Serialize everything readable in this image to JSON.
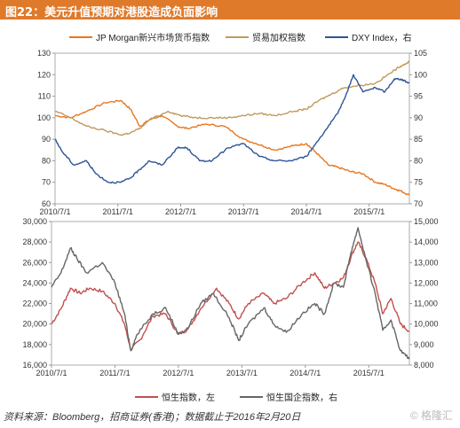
{
  "title": "图22：美元升值预期对港股造成负面影响",
  "footer": "资料来源：Bloomberg，招商证券(香港)；数据截止于2016年2月20日",
  "watermark": "© 格隆汇",
  "chart_data": [
    {
      "type": "line",
      "legend_position": "top",
      "x_ticks": [
        "2010/7/1",
        "2011/7/1",
        "2012/7/1",
        "2013/7/1",
        "2014/7/1",
        "2015/7/1"
      ],
      "y_left": {
        "ticks": [
          60,
          70,
          80,
          90,
          100,
          110,
          120,
          130
        ],
        "range": [
          60,
          130
        ]
      },
      "y_right": {
        "ticks": [
          70,
          75,
          80,
          85,
          90,
          95,
          100,
          105
        ],
        "range": [
          70,
          105
        ]
      },
      "series": [
        {
          "name": "JP Morgan新兴市场货币指数",
          "axis": "left",
          "color": "#e8761e",
          "values": [
            [
              2010.5,
              101
            ],
            [
              2010.75,
              100
            ],
            [
              2011.0,
              103
            ],
            [
              2011.3,
              107
            ],
            [
              2011.55,
              108
            ],
            [
              2011.7,
              104
            ],
            [
              2011.85,
              96
            ],
            [
              2012.0,
              99
            ],
            [
              2012.2,
              101
            ],
            [
              2012.45,
              96
            ],
            [
              2012.6,
              95
            ],
            [
              2012.9,
              97
            ],
            [
              2013.2,
              96
            ],
            [
              2013.5,
              90
            ],
            [
              2013.7,
              88
            ],
            [
              2014.0,
              85
            ],
            [
              2014.3,
              87
            ],
            [
              2014.5,
              88
            ],
            [
              2014.65,
              84
            ],
            [
              2014.85,
              78
            ],
            [
              2015.0,
              77
            ],
            [
              2015.2,
              75
            ],
            [
              2015.4,
              74
            ],
            [
              2015.6,
              70
            ],
            [
              2015.75,
              69
            ],
            [
              2015.9,
              67
            ],
            [
              2016.0,
              66
            ],
            [
              2016.14,
              64
            ]
          ]
        },
        {
          "name": "贸易加权指数",
          "axis": "left",
          "color": "#c19a5b",
          "values": [
            [
              2010.5,
              103
            ],
            [
              2010.75,
              100
            ],
            [
              2011.0,
              96
            ],
            [
              2011.3,
              94
            ],
            [
              2011.55,
              92
            ],
            [
              2011.7,
              93
            ],
            [
              2011.85,
              95
            ],
            [
              2012.0,
              99
            ],
            [
              2012.3,
              103
            ],
            [
              2012.5,
              101
            ],
            [
              2012.75,
              100
            ],
            [
              2013.0,
              100
            ],
            [
              2013.25,
              100
            ],
            [
              2013.5,
              101
            ],
            [
              2013.75,
              102
            ],
            [
              2014.0,
              101
            ],
            [
              2014.3,
              103
            ],
            [
              2014.5,
              104
            ],
            [
              2014.7,
              108
            ],
            [
              2014.9,
              111
            ],
            [
              2015.1,
              114
            ],
            [
              2015.35,
              115
            ],
            [
              2015.6,
              116
            ],
            [
              2015.85,
              121
            ],
            [
              2016.0,
              124
            ],
            [
              2016.14,
              126
            ]
          ]
        },
        {
          "name": "DXY Index，右",
          "axis": "right",
          "color": "#2e5596",
          "values": [
            [
              2010.5,
              85
            ],
            [
              2010.62,
              82
            ],
            [
              2010.8,
              79
            ],
            [
              2011.0,
              80
            ],
            [
              2011.15,
              77
            ],
            [
              2011.35,
              75
            ],
            [
              2011.55,
              75
            ],
            [
              2011.7,
              76
            ],
            [
              2011.85,
              78
            ],
            [
              2012.0,
              80
            ],
            [
              2012.2,
              79
            ],
            [
              2012.45,
              83
            ],
            [
              2012.6,
              83
            ],
            [
              2012.8,
              80
            ],
            [
              2013.0,
              80
            ],
            [
              2013.25,
              83
            ],
            [
              2013.5,
              84
            ],
            [
              2013.75,
              81
            ],
            [
              2014.0,
              80
            ],
            [
              2014.25,
              80
            ],
            [
              2014.5,
              81
            ],
            [
              2014.65,
              84
            ],
            [
              2014.85,
              88
            ],
            [
              2015.0,
              91
            ],
            [
              2015.15,
              96
            ],
            [
              2015.25,
              100
            ],
            [
              2015.4,
              96
            ],
            [
              2015.6,
              97
            ],
            [
              2015.75,
              96
            ],
            [
              2015.9,
              99
            ],
            [
              2016.0,
              99
            ],
            [
              2016.14,
              98
            ]
          ]
        }
      ]
    },
    {
      "type": "line",
      "legend_position": "bottom",
      "x_ticks": [
        "2010/7/1",
        "2011/7/1",
        "2012/7/1",
        "2013/7/1",
        "2014/7/1",
        "2015/7/1"
      ],
      "y_left": {
        "ticks": [
          16000,
          18000,
          20000,
          22000,
          24000,
          26000,
          28000,
          30000
        ],
        "range": [
          16000,
          30000
        ],
        "format": "comma"
      },
      "y_right": {
        "ticks": [
          8000,
          9000,
          10000,
          11000,
          12000,
          13000,
          14000,
          15000
        ],
        "range": [
          8000,
          15000
        ],
        "format": "comma"
      },
      "series": [
        {
          "name": "恒生指数，左",
          "axis": "left",
          "color": "#c0504d",
          "values": [
            [
              2010.5,
              20000
            ],
            [
              2010.65,
              21500
            ],
            [
              2010.8,
              23500
            ],
            [
              2010.95,
              23000
            ],
            [
              2011.1,
              23500
            ],
            [
              2011.3,
              23200
            ],
            [
              2011.5,
              22000
            ],
            [
              2011.65,
              20000
            ],
            [
              2011.75,
              17500
            ],
            [
              2011.9,
              18500
            ],
            [
              2012.1,
              20800
            ],
            [
              2012.3,
              21000
            ],
            [
              2012.5,
              19000
            ],
            [
              2012.65,
              19500
            ],
            [
              2012.85,
              21500
            ],
            [
              2013.1,
              23500
            ],
            [
              2013.3,
              22000
            ],
            [
              2013.45,
              20500
            ],
            [
              2013.6,
              22000
            ],
            [
              2013.85,
              23000
            ],
            [
              2014.0,
              22000
            ],
            [
              2014.2,
              22500
            ],
            [
              2014.45,
              24000
            ],
            [
              2014.65,
              25000
            ],
            [
              2014.8,
              23500
            ],
            [
              2014.95,
              24000
            ],
            [
              2015.1,
              24500
            ],
            [
              2015.25,
              27000
            ],
            [
              2015.33,
              28000
            ],
            [
              2015.45,
              26500
            ],
            [
              2015.6,
              24000
            ],
            [
              2015.72,
              21000
            ],
            [
              2015.85,
              22500
            ],
            [
              2016.0,
              20000
            ],
            [
              2016.14,
              19300
            ]
          ]
        },
        {
          "name": "恒生国企指数，右",
          "axis": "right",
          "color": "#666666",
          "values": [
            [
              2010.5,
              11800
            ],
            [
              2010.65,
              12500
            ],
            [
              2010.8,
              13700
            ],
            [
              2010.9,
              13200
            ],
            [
              2011.05,
              12500
            ],
            [
              2011.3,
              13000
            ],
            [
              2011.5,
              12000
            ],
            [
              2011.65,
              10500
            ],
            [
              2011.75,
              8700
            ],
            [
              2011.85,
              9500
            ],
            [
              2012.1,
              10500
            ],
            [
              2012.3,
              10800
            ],
            [
              2012.5,
              9500
            ],
            [
              2012.65,
              9800
            ],
            [
              2012.85,
              11000
            ],
            [
              2013.05,
              11500
            ],
            [
              2013.3,
              10300
            ],
            [
              2013.45,
              9200
            ],
            [
              2013.6,
              10000
            ],
            [
              2013.85,
              10800
            ],
            [
              2014.0,
              10000
            ],
            [
              2014.2,
              9600
            ],
            [
              2014.45,
              10500
            ],
            [
              2014.65,
              11000
            ],
            [
              2014.8,
              10500
            ],
            [
              2014.95,
              12000
            ],
            [
              2015.1,
              11800
            ],
            [
              2015.22,
              13500
            ],
            [
              2015.33,
              14700
            ],
            [
              2015.45,
              13200
            ],
            [
              2015.6,
              11500
            ],
            [
              2015.72,
              9700
            ],
            [
              2015.85,
              10200
            ],
            [
              2016.0,
              8700
            ],
            [
              2016.14,
              8300
            ]
          ]
        }
      ]
    }
  ]
}
